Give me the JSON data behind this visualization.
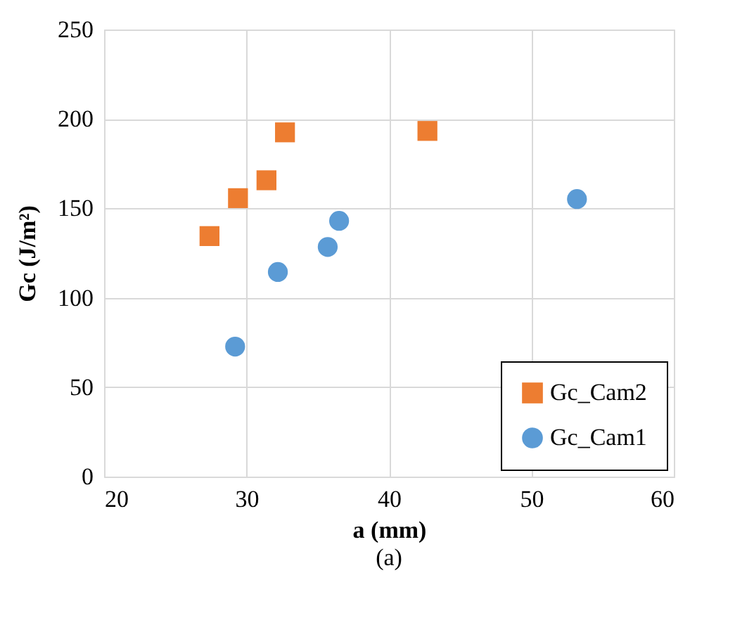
{
  "chart_data": {
    "type": "scatter",
    "xlabel": "a (mm)",
    "ylabel": "Gc (J/m²)",
    "xlim": [
      20,
      60
    ],
    "xticks": [
      20,
      30,
      40,
      50,
      60
    ],
    "ylim": [
      0,
      250
    ],
    "yticks": [
      0,
      50,
      100,
      150,
      200,
      250
    ],
    "grid": true,
    "legend": "bottom right",
    "annotations": [
      "(a)"
    ],
    "series": [
      {
        "name": "Gc_Cam2",
        "color": "#ed7d31",
        "marker": "square",
        "x": [
          27.4,
          29.4,
          31.4,
          32.7,
          42.7
        ],
        "values": [
          134.5,
          155.7,
          165.7,
          192.5,
          193.3
        ]
      },
      {
        "name": "Gc_Cam1",
        "color": "#5b9bd5",
        "marker": "circle",
        "x": [
          29.2,
          32.2,
          35.7,
          36.5,
          53.2
        ],
        "values": [
          72.7,
          114.4,
          128.4,
          143.0,
          155.2
        ]
      }
    ]
  }
}
